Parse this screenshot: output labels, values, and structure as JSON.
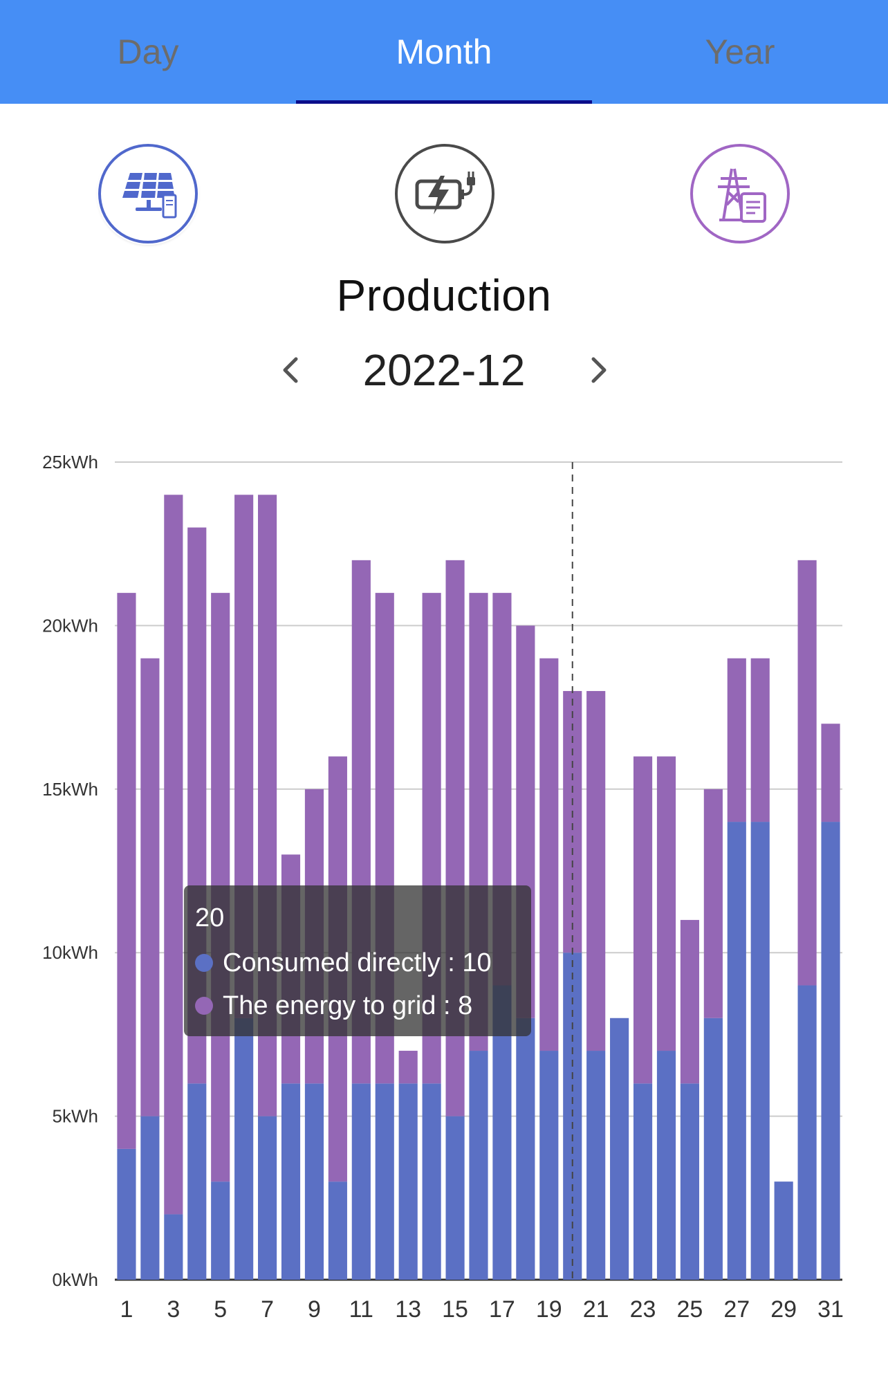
{
  "tabs": [
    {
      "label": "Day",
      "active": false
    },
    {
      "label": "Month",
      "active": true
    },
    {
      "label": "Year",
      "active": false
    }
  ],
  "icons": {
    "solar": "solar-panel-icon",
    "battery": "battery-charging-icon",
    "grid": "power-tower-document-icon"
  },
  "page_title": "Production",
  "period": "2022-12",
  "colors": {
    "header": "#468ef5",
    "tab_indicator": "#0b0d8a",
    "consumed": "#5b70c4",
    "grid": "#9467b5"
  },
  "tooltip": {
    "day": "20",
    "rows": [
      {
        "label": "Consumed directly : 10",
        "color": "#5b70c4"
      },
      {
        "label": "The energy to grid : 8",
        "color": "#9467b5"
      }
    ]
  },
  "chart_data": {
    "type": "bar",
    "stacked": true,
    "categories": [
      "1",
      "2",
      "3",
      "4",
      "5",
      "6",
      "7",
      "8",
      "9",
      "10",
      "11",
      "12",
      "13",
      "14",
      "15",
      "16",
      "17",
      "18",
      "19",
      "20",
      "21",
      "22",
      "23",
      "24",
      "25",
      "26",
      "27",
      "28",
      "29",
      "30",
      "31"
    ],
    "tick_labels": [
      "1",
      "3",
      "5",
      "7",
      "9",
      "11",
      "13",
      "15",
      "17",
      "19",
      "21",
      "23",
      "25",
      "27",
      "29",
      "31"
    ],
    "series": [
      {
        "name": "Consumed directly",
        "color": "#5b70c4",
        "values": [
          4,
          5,
          2,
          6,
          3,
          8,
          5,
          6,
          6,
          3,
          6,
          6,
          6,
          6,
          5,
          7,
          9,
          8,
          7,
          10,
          7,
          8,
          6,
          7,
          6,
          8,
          14,
          14,
          3,
          9,
          14
        ]
      },
      {
        "name": "The energy to grid",
        "color": "#9467b5",
        "values": [
          17,
          14,
          22,
          17,
          18,
          16,
          19,
          7,
          9,
          13,
          16,
          15,
          1,
          15,
          17,
          14,
          12,
          12,
          12,
          8,
          11,
          0,
          10,
          9,
          5,
          7,
          5,
          5,
          0,
          13,
          3
        ]
      }
    ],
    "ylim": [
      0,
      25
    ],
    "y_ticks": [
      0,
      5,
      10,
      15,
      20,
      25
    ],
    "y_tick_labels": [
      "0kWh",
      "5kWh",
      "10kWh",
      "15kWh",
      "20kWh",
      "25kWh"
    ],
    "highlighted_category": "20",
    "grid": true
  }
}
